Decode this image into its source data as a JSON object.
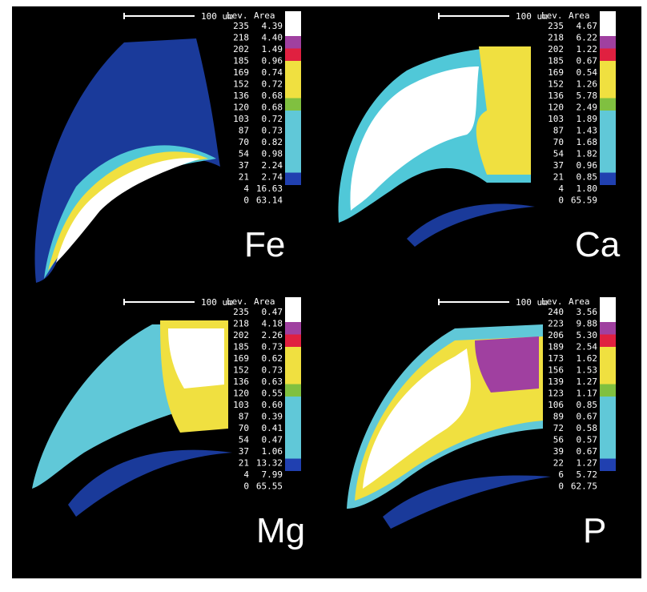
{
  "panels": [
    {
      "label": "Fe",
      "scale": "100 um",
      "headers": [
        "Lev.",
        "Area"
      ],
      "rows": [
        [
          "235",
          "4.39"
        ],
        [
          "218",
          "4.40"
        ],
        [
          "202",
          "1.49"
        ],
        [
          "185",
          "0.96"
        ],
        [
          "169",
          "0.74"
        ],
        [
          "152",
          "0.72"
        ],
        [
          "136",
          "0.68"
        ],
        [
          "120",
          "0.68"
        ],
        [
          "103",
          "0.72"
        ],
        [
          "87",
          "0.73"
        ],
        [
          "70",
          "0.82"
        ],
        [
          "54",
          "0.98"
        ],
        [
          "37",
          "2.24"
        ],
        [
          "21",
          "2.74"
        ],
        [
          "4",
          "16.63"
        ],
        [
          "0",
          "63.14"
        ]
      ]
    },
    {
      "label": "Ca",
      "scale": "100 um",
      "headers": [
        "Lev.",
        "Area"
      ],
      "rows": [
        [
          "235",
          "4.67"
        ],
        [
          "218",
          "6.22"
        ],
        [
          "202",
          "1.22"
        ],
        [
          "185",
          "0.67"
        ],
        [
          "169",
          "0.54"
        ],
        [
          "152",
          "1.26"
        ],
        [
          "136",
          "5.78"
        ],
        [
          "120",
          "2.49"
        ],
        [
          "103",
          "1.89"
        ],
        [
          "87",
          "1.43"
        ],
        [
          "70",
          "1.68"
        ],
        [
          "54",
          "1.82"
        ],
        [
          "37",
          "0.96"
        ],
        [
          "21",
          "0.85"
        ],
        [
          "4",
          "1.80"
        ],
        [
          "0",
          "65.59"
        ]
      ]
    },
    {
      "label": "Mg",
      "scale": "100 um",
      "headers": [
        "Lev.",
        "Area"
      ],
      "rows": [
        [
          "235",
          "0.47"
        ],
        [
          "218",
          "4.18"
        ],
        [
          "202",
          "2.26"
        ],
        [
          "185",
          "0.73"
        ],
        [
          "169",
          "0.62"
        ],
        [
          "152",
          "0.73"
        ],
        [
          "136",
          "0.63"
        ],
        [
          "120",
          "0.55"
        ],
        [
          "103",
          "0.60"
        ],
        [
          "87",
          "0.39"
        ],
        [
          "70",
          "0.41"
        ],
        [
          "54",
          "0.47"
        ],
        [
          "37",
          "1.06"
        ],
        [
          "21",
          "13.32"
        ],
        [
          "4",
          "7.99"
        ],
        [
          "0",
          "65.55"
        ]
      ]
    },
    {
      "label": "P",
      "scale": "100 um",
      "headers": [
        "Lev.",
        "Area"
      ],
      "rows": [
        [
          "240",
          "3.56"
        ],
        [
          "223",
          "9.88"
        ],
        [
          "206",
          "5.30"
        ],
        [
          "189",
          "2.54"
        ],
        [
          "173",
          "1.62"
        ],
        [
          "156",
          "1.53"
        ],
        [
          "139",
          "1.27"
        ],
        [
          "123",
          "1.17"
        ],
        [
          "106",
          "0.85"
        ],
        [
          "89",
          "0.67"
        ],
        [
          "72",
          "0.58"
        ],
        [
          "56",
          "0.57"
        ],
        [
          "39",
          "0.67"
        ],
        [
          "22",
          "1.27"
        ],
        [
          "6",
          "5.72"
        ],
        [
          "0",
          "62.75"
        ]
      ]
    }
  ]
}
